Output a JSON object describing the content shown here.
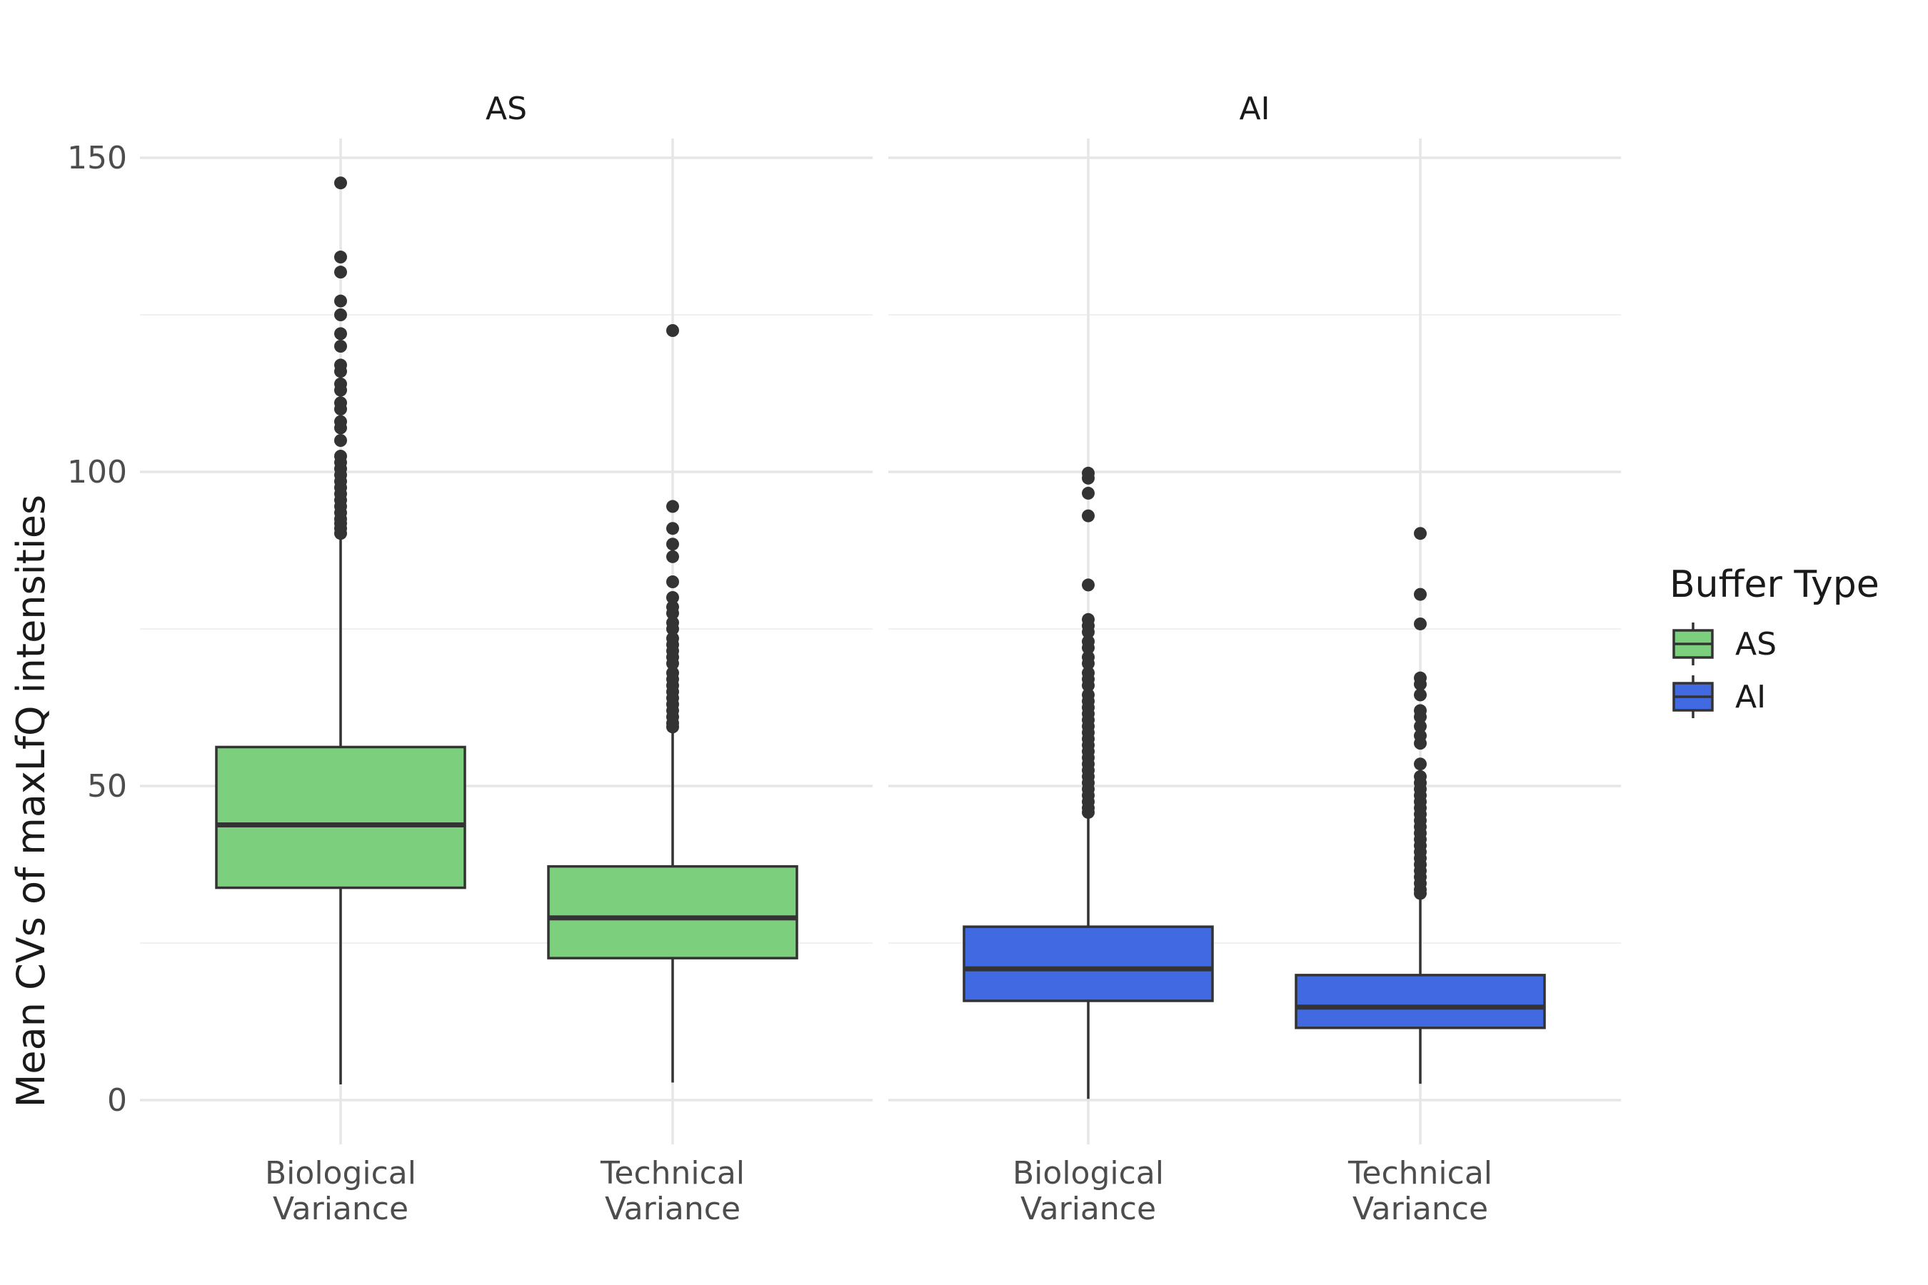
{
  "chart_data": {
    "type": "boxplot",
    "ylabel": "Mean CVs of maxLfQ intensities",
    "xlabel": "",
    "ylim": [
      0,
      150
    ],
    "yticks": [
      "0",
      "50",
      "100",
      "150"
    ],
    "ytick_values": [
      0,
      50,
      100,
      150
    ],
    "grid": true,
    "legend": {
      "title": "Buffer Type",
      "position": "right",
      "entries": [
        {
          "label": "AS",
          "color": "#7ccf7c"
        },
        {
          "label": "AI",
          "color": "#4169e1"
        }
      ]
    },
    "panels": [
      {
        "name": "AS",
        "color": "#7ccf7c",
        "categories": [
          {
            "label_lines": [
              "Biological",
              "Variance"
            ],
            "whisker_low": 2.5,
            "q1": 33.8,
            "median": 43.8,
            "q3": 56.2,
            "whisker_high": 89.5,
            "outliers": [
              146,
              134.2,
              131.8,
              127.2,
              125,
              122,
              120,
              117,
              116,
              114,
              113,
              111,
              110,
              108,
              107,
              105,
              102.5,
              101.5,
              100.5,
              99.5,
              98.5,
              97.5,
              96.5,
              95.5,
              94.5,
              93.5,
              92.5,
              91.8,
              91,
              90.2
            ]
          },
          {
            "label_lines": [
              "Technical",
              "Variance"
            ],
            "whisker_low": 2.8,
            "q1": 22.6,
            "median": 29.0,
            "q3": 37.2,
            "whisker_high": 58.8,
            "outliers": [
              122.5,
              94.5,
              91,
              88.5,
              86.5,
              82.5,
              80,
              78.5,
              77.5,
              76,
              75,
              73.5,
              72.5,
              71.5,
              70.5,
              69.5,
              68,
              67,
              66,
              65,
              64,
              63,
              62,
              61,
              60,
              59.4
            ]
          }
        ]
      },
      {
        "name": "AI",
        "color": "#4169e1",
        "categories": [
          {
            "label_lines": [
              "Biological",
              "Variance"
            ],
            "whisker_low": 0.2,
            "q1": 15.8,
            "median": 20.9,
            "q3": 27.6,
            "whisker_high": 45.2,
            "outliers": [
              99.8,
              99,
              96.6,
              93,
              82,
              76.5,
              75.5,
              74.5,
              73,
              72,
              70.5,
              69.5,
              68,
              67,
              66,
              64.5,
              63.5,
              62.5,
              61.5,
              60.5,
              59.5,
              58.5,
              57.5,
              56.5,
              55.5,
              54.5,
              53.5,
              52.5,
              51.5,
              50.5,
              49.5,
              48.5,
              47.5,
              46.5,
              45.8
            ]
          },
          {
            "label_lines": [
              "Technical",
              "Variance"
            ],
            "whisker_low": 2.6,
            "q1": 11.5,
            "median": 14.8,
            "q3": 19.9,
            "whisker_high": 32.5,
            "outliers": [
              90.2,
              80.5,
              75.8,
              67.2,
              66.2,
              64.5,
              62,
              61,
              59.5,
              58,
              56.8,
              53.5,
              51.5,
              50.5,
              49.5,
              48.5,
              47.5,
              46.5,
              45.5,
              44.5,
              43.5,
              42.5,
              41.5,
              40.5,
              39.5,
              38.5,
              37.5,
              36.5,
              35.5,
              34.5,
              33.5,
              32.9
            ]
          }
        ]
      }
    ]
  }
}
